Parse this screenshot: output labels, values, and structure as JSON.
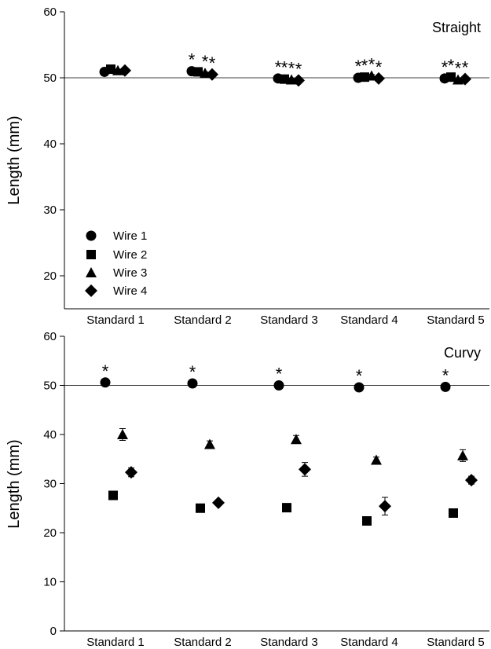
{
  "figure": {
    "panels": [
      {
        "label": "Straight",
        "ylabel": "Length (mm)",
        "legend": {
          "placement": "bottom-left",
          "entries": [
            {
              "name": "Wire 1",
              "marker": "circle"
            },
            {
              "name": "Wire 2",
              "marker": "square"
            },
            {
              "name": "Wire 3",
              "marker": "triangle"
            },
            {
              "name": "Wire 4",
              "marker": "diamond"
            }
          ]
        }
      },
      {
        "label": "Curvy",
        "ylabel": "Length (mm)"
      }
    ]
  },
  "chart_data": [
    {
      "type": "scatter",
      "title": "Straight",
      "ylabel": "Length (mm)",
      "xlabel": "",
      "ylim": [
        15,
        60
      ],
      "yticks": [
        20,
        30,
        40,
        50,
        60
      ],
      "reference_line": 50,
      "grid": false,
      "categories": [
        "Standard 1",
        "Standard 2",
        "Standard 3",
        "Standard 4",
        "Standard 5"
      ],
      "series": [
        {
          "name": "Wire 1",
          "marker": "circle",
          "values": [
            50.9,
            51.0,
            49.9,
            50.0,
            49.9
          ],
          "errors": [
            0.2,
            0.2,
            0.2,
            0.2,
            0.2
          ],
          "significant": [
            false,
            true,
            true,
            true,
            true
          ]
        },
        {
          "name": "Wire 2",
          "marker": "square",
          "values": [
            51.3,
            50.9,
            49.8,
            50.1,
            50.1
          ],
          "errors": [
            0.2,
            0.2,
            0.2,
            0.2,
            0.2
          ],
          "significant": [
            false,
            false,
            true,
            true,
            true
          ]
        },
        {
          "name": "Wire 3",
          "marker": "triangle",
          "values": [
            51.1,
            50.7,
            49.7,
            50.3,
            49.7
          ],
          "errors": [
            0.2,
            0.2,
            0.2,
            0.2,
            0.2
          ],
          "significant": [
            false,
            true,
            true,
            true,
            true
          ]
        },
        {
          "name": "Wire 4",
          "marker": "diamond",
          "values": [
            51.1,
            50.5,
            49.6,
            49.9,
            49.8
          ],
          "errors": [
            0.2,
            0.2,
            0.2,
            0.2,
            0.2
          ],
          "significant": [
            false,
            true,
            true,
            true,
            true
          ]
        }
      ]
    },
    {
      "type": "scatter",
      "title": "Curvy",
      "ylabel": "Length (mm)",
      "xlabel": "",
      "ylim": [
        0,
        60
      ],
      "yticks": [
        0,
        10,
        20,
        30,
        40,
        50,
        60
      ],
      "reference_line": 50,
      "grid": false,
      "categories": [
        "Standard 1",
        "Standard 2",
        "Standard 3",
        "Standard 4",
        "Standard 5"
      ],
      "series": [
        {
          "name": "Wire 1",
          "marker": "circle",
          "values": [
            50.6,
            50.4,
            50.0,
            49.6,
            49.7
          ],
          "errors": [
            0.3,
            0.3,
            0.3,
            0.3,
            0.3
          ],
          "significant": [
            true,
            true,
            true,
            true,
            true
          ]
        },
        {
          "name": "Wire 2",
          "marker": "square",
          "values": [
            27.6,
            25.0,
            25.1,
            22.4,
            24.0
          ],
          "errors": [
            0.3,
            0.3,
            0.3,
            0.3,
            0.3
          ],
          "significant": [
            false,
            false,
            false,
            false,
            false
          ]
        },
        {
          "name": "Wire 3",
          "marker": "triangle",
          "values": [
            40.0,
            38.0,
            39.0,
            34.8,
            35.7
          ],
          "errors": [
            1.2,
            0.7,
            0.8,
            0.6,
            1.2
          ],
          "significant": [
            false,
            false,
            false,
            false,
            false
          ]
        },
        {
          "name": "Wire 4",
          "marker": "diamond",
          "values": [
            32.3,
            26.1,
            32.9,
            25.4,
            30.7
          ],
          "errors": [
            0.9,
            0.3,
            1.4,
            1.8,
            0.8
          ],
          "significant": [
            false,
            false,
            false,
            false,
            false
          ]
        }
      ]
    }
  ]
}
